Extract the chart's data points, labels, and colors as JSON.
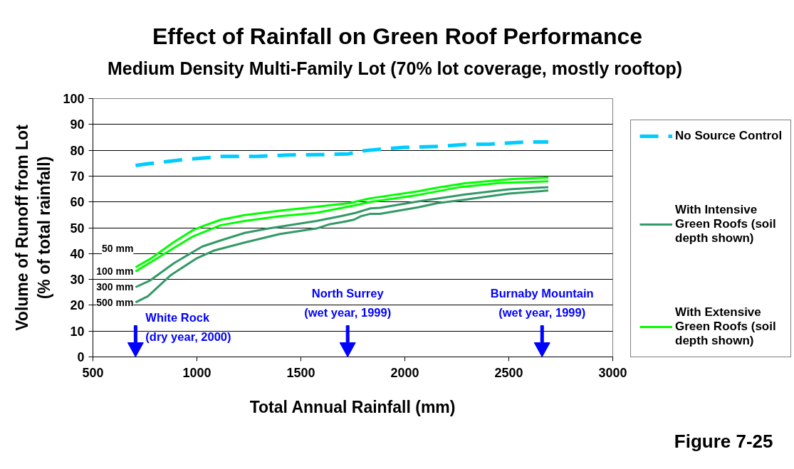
{
  "chart_data": {
    "type": "line",
    "title": "Effect of Rainfall on Green Roof Performance",
    "subtitle": "Medium Density Multi-Family Lot  (70% lot coverage, mostly rooftop)",
    "xlabel": "Total Annual Rainfall (mm)",
    "ylabel": "Volume of Runoff from Lot (% of total rainfall)",
    "xlim": [
      500,
      3000
    ],
    "xticks": [
      500,
      1000,
      1500,
      2000,
      2500,
      3000
    ],
    "ylim": [
      0,
      100
    ],
    "yticks": [
      0,
      10,
      20,
      30,
      40,
      50,
      60,
      70,
      80,
      90,
      100
    ],
    "grid": "y",
    "legend": "right",
    "series": [
      {
        "name": "No Source Control",
        "color": "#00ccff",
        "line_style": "dashed",
        "x": [
          705,
          760,
          930,
          1120,
          1290,
          1440,
          1600,
          1730,
          1790,
          1880,
          2000,
          2160,
          2290,
          2410,
          2580,
          2690
        ],
        "values": [
          74.1,
          74.7,
          76.3,
          77.6,
          77.6,
          78.2,
          78.3,
          78.6,
          79.7,
          80.4,
          81.1,
          81.5,
          82.2,
          82.4,
          83.2,
          83.2
        ]
      },
      {
        "name": "With Intensive Green Roofs (soil depth shown)",
        "color": "#339966",
        "x": [
          705,
          775,
          890,
          1025,
          1115,
          1230,
          1345,
          1575,
          1700,
          1765,
          1835,
          1880,
          2065,
          2290,
          2500,
          2690
        ],
        "values": [
          27.0,
          29.6,
          36.3,
          42.7,
          45.1,
          48.0,
          49.7,
          52.6,
          54.6,
          55.8,
          57.5,
          57.7,
          60.2,
          62.9,
          64.9,
          65.7
        ]
      },
      {
        "color": "#339966",
        "x": [
          705,
          765,
          875,
          1000,
          1080,
          1230,
          1400,
          1575,
          1640,
          1700,
          1755,
          1790,
          1835,
          1880,
          2065,
          2155,
          2290,
          2500,
          2690
        ],
        "values": [
          21.1,
          23.5,
          31.7,
          38.2,
          41.1,
          44.3,
          47.6,
          49.7,
          51.4,
          52.2,
          53.1,
          54.5,
          55.4,
          55.4,
          57.9,
          59.5,
          60.9,
          63.2,
          64.4
        ]
      },
      {
        "name": "With Extensive Green Roofs (soil depth shown)",
        "color": "#00ff00",
        "x": [
          705,
          775,
          890,
          980,
          1025,
          1115,
          1230,
          1400,
          1575,
          1675,
          1735,
          1780,
          1835,
          2065,
          2155,
          2290,
          2450,
          2520,
          2690
        ],
        "values": [
          34.7,
          37.9,
          44.5,
          49.0,
          50.5,
          53.1,
          54.9,
          56.6,
          58.1,
          59.0,
          59.5,
          60.4,
          61.4,
          64.1,
          65.5,
          67.2,
          68.4,
          68.9,
          69.4
        ]
      },
      {
        "color": "#00ff00",
        "x": [
          705,
          775,
          890,
          980,
          1115,
          1230,
          1400,
          1575,
          1700,
          1780,
          1835,
          2065,
          2270,
          2450,
          2520,
          2690
        ],
        "values": [
          33.1,
          36.5,
          42.2,
          46.6,
          51.0,
          52.6,
          54.5,
          55.8,
          57.7,
          59.0,
          60.0,
          62.7,
          65.8,
          67.3,
          67.5,
          68.0
        ]
      }
    ],
    "ref_lines": [
      {
        "axis": "x",
        "value": 705,
        "label": "White Rock (dry year, 2000)",
        "color": "#0000ff"
      },
      {
        "axis": "x",
        "value": 1725,
        "label": "North Surrey (wet year, 1999)",
        "color": "#0000ff"
      },
      {
        "axis": "x",
        "value": 2660,
        "label": "Burnaby Mountain (wet year, 1999)",
        "color": "#0000ff"
      }
    ],
    "annotations": [
      "50 mm",
      "100 mm",
      "300 mm",
      "500 mm",
      "Figure 7-25"
    ]
  }
}
